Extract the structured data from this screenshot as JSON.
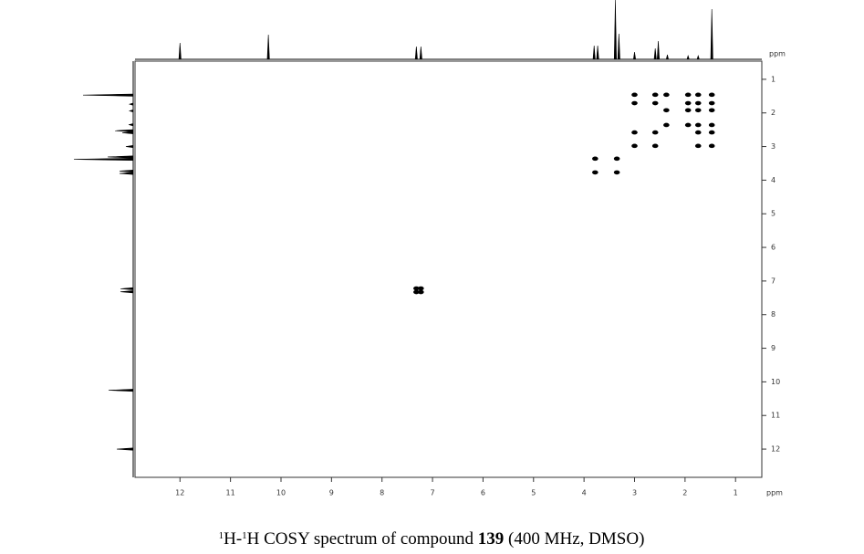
{
  "chart_data": {
    "type": "scatter",
    "x_label": "ppm",
    "y_label": "ppm",
    "xlim": [
      12.89,
      0.48
    ],
    "ylim": [
      0.46,
      12.84
    ],
    "xticks": [
      12,
      11,
      10,
      9,
      8,
      7,
      6,
      5,
      4,
      3,
      2,
      1
    ],
    "yticks": [
      1,
      2,
      3,
      4,
      5,
      6,
      7,
      8,
      9,
      10,
      11,
      12
    ],
    "color": "#000000",
    "x": [
      3.0,
      2.59,
      2.37,
      1.94,
      1.74,
      1.47,
      3.0,
      2.59,
      1.94,
      1.74,
      1.47,
      2.37,
      1.94,
      1.74,
      1.47,
      2.37,
      1.94,
      1.74,
      1.47,
      3.0,
      2.59,
      1.74,
      1.47,
      3.0,
      2.59,
      1.74,
      1.47,
      3.78,
      3.35,
      3.78,
      3.35,
      7.32,
      7.23,
      7.32,
      7.23
    ],
    "y": [
      1.46,
      1.46,
      1.46,
      1.46,
      1.46,
      1.46,
      1.71,
      1.71,
      1.71,
      1.71,
      1.71,
      1.92,
      1.92,
      1.92,
      1.92,
      2.36,
      2.36,
      2.36,
      2.36,
      2.58,
      2.58,
      2.58,
      2.58,
      2.98,
      2.98,
      2.98,
      2.98,
      3.36,
      3.36,
      3.77,
      3.77,
      7.22,
      7.22,
      7.33,
      7.33
    ],
    "projection": {
      "ppm": [
        12.0,
        10.25,
        7.32,
        7.23,
        3.8,
        3.73,
        3.38,
        3.31,
        3.0,
        2.59,
        2.53,
        2.35,
        1.94,
        1.74,
        1.47
      ],
      "intensity": [
        18,
        27,
        14,
        14,
        15,
        15,
        65,
        28,
        8,
        12,
        20,
        5,
        4,
        4,
        55
      ]
    },
    "caption": [
      "1",
      "H-",
      "1",
      "H COSY spectrum of compound ",
      "139",
      " (400 MHz, DMSO)"
    ]
  }
}
